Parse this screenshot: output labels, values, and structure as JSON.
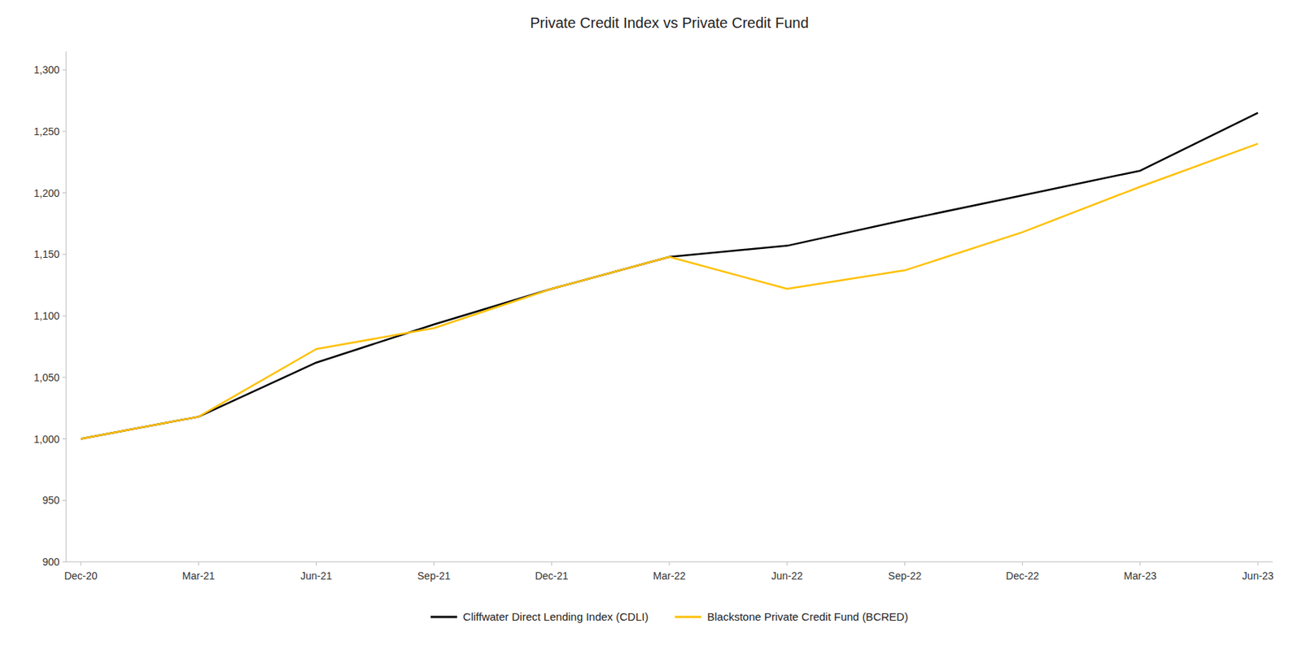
{
  "chart_data": {
    "type": "line",
    "title": "Private Credit Index vs Private Credit Fund",
    "categories": [
      "Dec-20",
      "Mar-21",
      "Jun-21",
      "Sep-21",
      "Dec-21",
      "Mar-22",
      "Jun-22",
      "Sep-22",
      "Dec-22",
      "Mar-23",
      "Jun-23"
    ],
    "series": [
      {
        "name": "Cliffwater Direct Lending Index (CDLI)",
        "color": "#000000",
        "values": [
          1000,
          1018,
          1062,
          1093,
          1122,
          1148,
          1157,
          1178,
          1198,
          1218,
          1265
        ]
      },
      {
        "name": "Blackstone Private Credit Fund (BCRED)",
        "color": "#FFC000",
        "values": [
          1000,
          1018,
          1073,
          1090,
          1122,
          1148,
          1122,
          1137,
          1168,
          1205,
          1240
        ]
      }
    ],
    "ylim": [
      900,
      1315
    ],
    "yticks": [
      900,
      950,
      {
        "value": 1000,
        "label": "1,000"
      },
      {
        "value": 1050,
        "label": "1,050"
      },
      {
        "value": 1100,
        "label": "1,100"
      },
      {
        "value": 1150,
        "label": "1,150"
      },
      {
        "value": 1200,
        "label": "1,200"
      },
      {
        "value": 1250,
        "label": "1,250"
      },
      {
        "value": 1300,
        "label": "1,300"
      }
    ],
    "grid": false,
    "legend": "bottom"
  }
}
